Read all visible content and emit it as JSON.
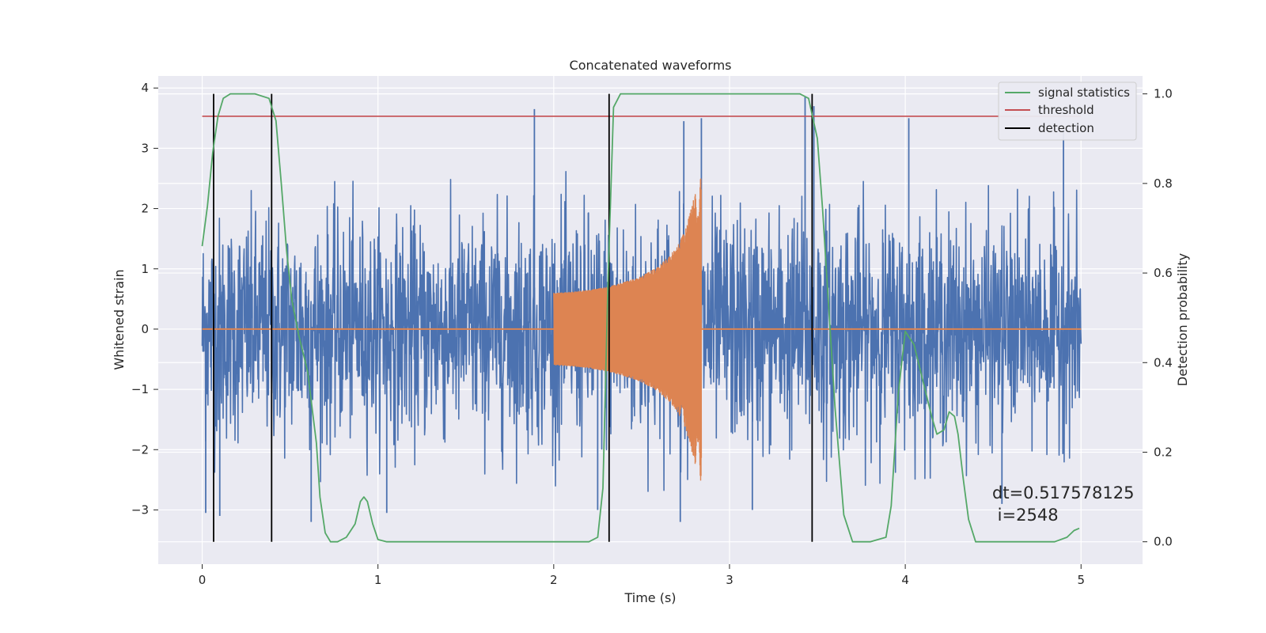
{
  "chart_data": {
    "type": "line",
    "title": "Concatenated waveforms",
    "xlabel": "Time (s)",
    "ylabel": "Whitened strain",
    "y2label": "Detection probability",
    "xlim": [
      -0.25,
      5.35
    ],
    "ylim": [
      -3.9,
      4.2
    ],
    "y2lim": [
      -0.05,
      1.04
    ],
    "x_ticks": [
      0,
      1,
      2,
      3,
      4,
      5
    ],
    "x_tick_labels": [
      "0",
      "1",
      "2",
      "3",
      "4",
      "5"
    ],
    "y_ticks": [
      -3,
      -2,
      -1,
      0,
      1,
      2,
      3,
      4
    ],
    "y_tick_labels": [
      "−3",
      "−2",
      "−1",
      "0",
      "1",
      "2",
      "3",
      "4"
    ],
    "y2_ticks": [
      0.0,
      0.2,
      0.4,
      0.6,
      0.8,
      1.0
    ],
    "y2_tick_labels": [
      "0.0",
      "0.2",
      "0.4",
      "0.6",
      "0.8",
      "1.0"
    ],
    "grid": true,
    "legend_position": "top-right",
    "legend": [
      "signal statistics",
      "threshold",
      "detection"
    ],
    "colors": {
      "noise": "#4c72b0",
      "signal": "#dd8452",
      "statistic": "#55a868",
      "threshold": "#c44e52",
      "detection": "#000000",
      "background": "#eaeaf2"
    },
    "noise": {
      "x_range": [
        0,
        5
      ],
      "envelope": [
        [
          0,
          2.5
        ],
        [
          0.5,
          2.6
        ],
        [
          1,
          2.4
        ],
        [
          1.5,
          2.5
        ],
        [
          2,
          2.6
        ],
        [
          2.5,
          2.7
        ],
        [
          3,
          2.6
        ],
        [
          3.5,
          2.7
        ],
        [
          4,
          2.5
        ],
        [
          4.5,
          2.4
        ],
        [
          5,
          2.3
        ]
      ],
      "spikes": [
        [
          0.02,
          -3.05
        ],
        [
          0.1,
          -3.1
        ],
        [
          1.05,
          -3.05
        ],
        [
          1.89,
          3.65
        ],
        [
          2.25,
          -3.0
        ],
        [
          2.72,
          -3.2
        ],
        [
          2.84,
          3.5
        ],
        [
          2.74,
          3.45
        ],
        [
          3.43,
          3.85
        ],
        [
          3.48,
          3.7
        ],
        [
          4.02,
          3.5
        ],
        [
          4.9,
          3.3
        ],
        [
          0.62,
          -3.2
        ],
        [
          3.13,
          -3.0
        ],
        [
          4.55,
          -2.9
        ]
      ]
    },
    "signal": {
      "x": [
        2.0,
        2.1,
        2.2,
        2.3,
        2.4,
        2.5,
        2.6,
        2.7,
        2.75,
        2.8,
        2.84
      ],
      "amplitude": [
        0.6,
        0.62,
        0.65,
        0.7,
        0.78,
        0.88,
        1.05,
        1.35,
        1.65,
        2.2,
        2.55
      ]
    },
    "threshold": 0.95,
    "detections": [
      0.065,
      0.395,
      2.315,
      3.47
    ],
    "series": [
      {
        "name": "signal statistics",
        "axis": "right",
        "x": [
          0,
          0.03,
          0.06,
          0.09,
          0.12,
          0.16,
          0.2,
          0.3,
          0.38,
          0.42,
          0.45,
          0.48,
          0.51,
          0.55,
          0.6,
          0.65,
          0.67,
          0.7,
          0.73,
          0.77,
          0.82,
          0.87,
          0.9,
          0.92,
          0.94,
          0.97,
          1.0,
          1.05,
          1.5,
          2.0,
          2.2,
          2.25,
          2.28,
          2.31,
          2.34,
          2.38,
          2.45,
          3.0,
          3.4,
          3.45,
          3.5,
          3.53,
          3.56,
          3.6,
          3.65,
          3.7,
          3.8,
          3.89,
          3.92,
          3.96,
          4.0,
          4.05,
          4.1,
          4.15,
          4.18,
          4.22,
          4.25,
          4.28,
          4.3,
          4.33,
          4.36,
          4.4,
          4.5,
          4.7,
          4.85,
          4.92,
          4.96,
          4.99
        ],
        "y": [
          0.66,
          0.75,
          0.87,
          0.95,
          0.99,
          1.0,
          1.0,
          1.0,
          0.99,
          0.94,
          0.8,
          0.65,
          0.54,
          0.46,
          0.38,
          0.22,
          0.1,
          0.02,
          0.0,
          0.0,
          0.01,
          0.04,
          0.09,
          0.1,
          0.09,
          0.04,
          0.005,
          0.0,
          0.0,
          0.0,
          0.0,
          0.01,
          0.12,
          0.6,
          0.97,
          1.0,
          1.0,
          1.0,
          1.0,
          0.99,
          0.9,
          0.74,
          0.55,
          0.3,
          0.06,
          0.0,
          0.0,
          0.01,
          0.08,
          0.33,
          0.47,
          0.44,
          0.36,
          0.28,
          0.24,
          0.25,
          0.29,
          0.28,
          0.24,
          0.14,
          0.05,
          0.0,
          0.0,
          0.0,
          0.0,
          0.01,
          0.025,
          0.03
        ]
      }
    ],
    "annotation": {
      "line1": "dt=0.517578125",
      "line2": " i=2548"
    }
  }
}
